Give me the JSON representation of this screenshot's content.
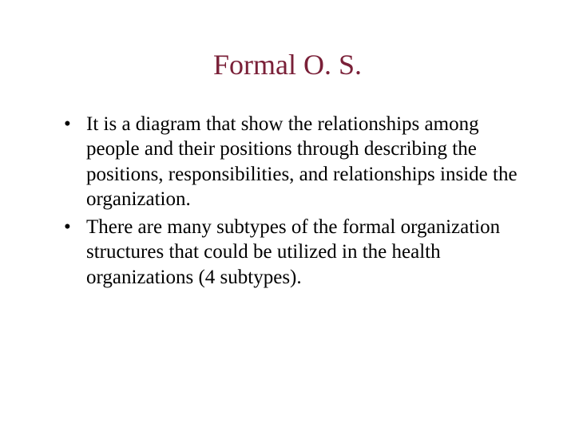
{
  "slide": {
    "title": "Formal O. S.",
    "title_color": "#7a2038",
    "title_fontsize": 36,
    "body_fontsize": 25,
    "body_color": "#000000",
    "background_color": "#ffffff",
    "font_family": "Times New Roman",
    "bullets": [
      "It is a diagram that show the relationships among people and their positions through describing the positions, responsibilities, and relationships inside the organization.",
      "There are many subtypes of the formal organization structures that could be utilized in the health organizations (4 subtypes)."
    ]
  }
}
